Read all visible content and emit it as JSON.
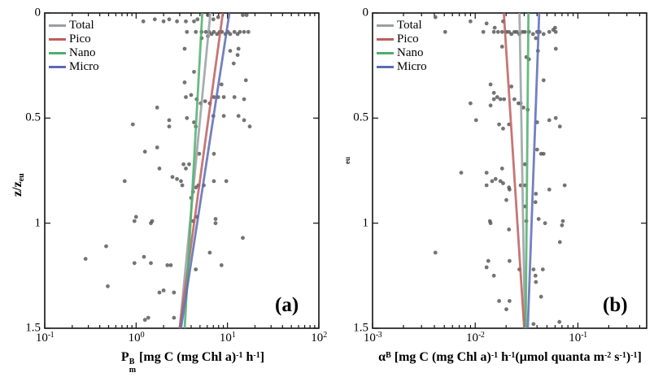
{
  "figure": {
    "background": "#ffffff",
    "dot_color": "#4d4d4d",
    "axis_color": "#111111"
  },
  "chart_data": [
    {
      "type": "scatter",
      "panel_label": "(a)",
      "xlabel_segments": [
        {
          "t": "P"
        },
        {
          "stack": {
            "sup": "B",
            "sub": "m"
          }
        },
        {
          "t": " [mg C (mg Chl a)"
        },
        {
          "sup": "-1"
        },
        {
          "t": " h"
        },
        {
          "sup": "-1"
        },
        {
          "t": "]"
        }
      ],
      "ylabel_segments": [
        {
          "t": "z/z"
        },
        {
          "sub": "eu"
        }
      ],
      "xscale": "log",
      "xlim_log10": [
        -1,
        2
      ],
      "ylim": [
        0,
        1.5
      ],
      "y_axis_reversed": true,
      "grid": false,
      "x_ticks": [
        {
          "base": "10",
          "exp": "-1"
        },
        {
          "base": "10",
          "exp": "0"
        },
        {
          "base": "10",
          "exp": "1"
        },
        {
          "base": "10",
          "exp": "2"
        }
      ],
      "y_ticks": [
        "0",
        "0.5",
        "1",
        "1.5"
      ],
      "legend_position": "top-left-inside",
      "legend": [
        {
          "label": "Total",
          "color": "#999fa1"
        },
        {
          "label": "Pico",
          "color": "#bd5e5c"
        },
        {
          "label": "Nano",
          "color": "#4fae6b"
        },
        {
          "label": "Micro",
          "color": "#5a6bb5"
        }
      ],
      "lines": [
        {
          "name": "Total",
          "color": "#999fa1",
          "x_at_z0": 6.5,
          "x_at_z1_5": 3.0
        },
        {
          "name": "Pico",
          "color": "#bd5e5c",
          "x_at_z0": 8.9,
          "x_at_z1_5": 3.0
        },
        {
          "name": "Nano",
          "color": "#4fae6b",
          "x_at_z0": 5.3,
          "x_at_z1_5": 3.4
        },
        {
          "name": "Micro",
          "color": "#5a6bb5",
          "x_at_z0": 10.5,
          "x_at_z1_5": 3.1
        }
      ],
      "scatter": [
        [
          1.2,
          0.04
        ],
        [
          1.6,
          0.03
        ],
        [
          2.0,
          0.04
        ],
        [
          2.3,
          0.03
        ],
        [
          2.8,
          0.04
        ],
        [
          3.5,
          0.04
        ],
        [
          4.3,
          0.04
        ],
        [
          4.7,
          0.03
        ],
        [
          6.1,
          0.01
        ],
        [
          7.0,
          0.03
        ],
        [
          7.9,
          0.02
        ],
        [
          14.7,
          0.01
        ],
        [
          16.2,
          0.01
        ],
        [
          3.6,
          0.09
        ],
        [
          4.5,
          0.09
        ],
        [
          5.2,
          0.09
        ],
        [
          5.8,
          0.09
        ],
        [
          6.3,
          0.09
        ],
        [
          6.7,
          0.1
        ],
        [
          7.1,
          0.09
        ],
        [
          7.7,
          0.1
        ],
        [
          8.2,
          0.09
        ],
        [
          8.7,
          0.09
        ],
        [
          9.5,
          0.1
        ],
        [
          10.1,
          0.09
        ],
        [
          10.7,
          0.1
        ],
        [
          11.9,
          0.09
        ],
        [
          12.9,
          0.1
        ],
        [
          13.7,
          0.09
        ],
        [
          15.2,
          0.09
        ],
        [
          16.9,
          0.09
        ],
        [
          5.2,
          0.12
        ],
        [
          6.1,
          0.11
        ],
        [
          3.4,
          0.17
        ],
        [
          10.7,
          0.18
        ],
        [
          13.2,
          0.17
        ],
        [
          12.9,
          0.2
        ],
        [
          11.7,
          0.24
        ],
        [
          4.3,
          0.28
        ],
        [
          3.4,
          0.33
        ],
        [
          8.6,
          0.34
        ],
        [
          15.9,
          0.32
        ],
        [
          3.5,
          0.4
        ],
        [
          4.0,
          0.39
        ],
        [
          4.6,
          0.41
        ],
        [
          5.1,
          0.43
        ],
        [
          5.7,
          0.42
        ],
        [
          6.4,
          0.43
        ],
        [
          7.1,
          0.4
        ],
        [
          7.9,
          0.4
        ],
        [
          9.1,
          0.4
        ],
        [
          11.9,
          0.4
        ],
        [
          15.2,
          0.41
        ],
        [
          1.7,
          0.45
        ],
        [
          7.0,
          0.49
        ],
        [
          0.92,
          0.53
        ],
        [
          2.3,
          0.51
        ],
        [
          2.3,
          0.54
        ],
        [
          3.6,
          0.5
        ],
        [
          4.3,
          0.52
        ],
        [
          4.5,
          0.54
        ],
        [
          9.1,
          0.49
        ],
        [
          13.2,
          0.49
        ],
        [
          15.2,
          0.51
        ],
        [
          17.5,
          0.54
        ],
        [
          1.25,
          0.66
        ],
        [
          1.7,
          0.64
        ],
        [
          4.9,
          0.67
        ],
        [
          7.1,
          0.67
        ],
        [
          3.8,
          0.72
        ],
        [
          3.3,
          0.72
        ],
        [
          3.5,
          0.74
        ],
        [
          1.8,
          0.74
        ],
        [
          2.5,
          0.78
        ],
        [
          2.8,
          0.79
        ],
        [
          3.1,
          0.8
        ],
        [
          3.2,
          0.82
        ],
        [
          0.75,
          0.8
        ],
        [
          4.2,
          0.85
        ],
        [
          4.5,
          0.83
        ],
        [
          4.8,
          0.82
        ],
        [
          5.5,
          0.82
        ],
        [
          7.1,
          0.8
        ],
        [
          9.7,
          0.8
        ],
        [
          4.0,
          0.88
        ],
        [
          4.6,
          0.97
        ],
        [
          1.0,
          0.97
        ],
        [
          1.5,
          0.99
        ],
        [
          7.4,
          0.98
        ],
        [
          0.96,
          0.99
        ],
        [
          1.45,
          1.0
        ],
        [
          4.2,
          0.99
        ],
        [
          7.4,
          1.0
        ],
        [
          14.7,
          1.07
        ],
        [
          0.47,
          1.11
        ],
        [
          0.28,
          1.17
        ],
        [
          0.96,
          1.19
        ],
        [
          1.22,
          1.16
        ],
        [
          1.45,
          1.19
        ],
        [
          2.2,
          1.2
        ],
        [
          2.4,
          1.2
        ],
        [
          6.4,
          1.14
        ],
        [
          8.6,
          1.2
        ],
        [
          4.5,
          1.22
        ],
        [
          0.49,
          1.3
        ],
        [
          1.8,
          1.33
        ],
        [
          2.0,
          1.32
        ],
        [
          2.6,
          1.33
        ],
        [
          1.36,
          1.45
        ],
        [
          2.6,
          1.45
        ],
        [
          1.25,
          1.46
        ]
      ]
    },
    {
      "type": "scatter",
      "panel_label": "(b)",
      "xlabel_segments": [
        {
          "t": "α"
        },
        {
          "sup": "B"
        },
        {
          "t": " [mg C (mg Chl a)"
        },
        {
          "sup": "-1"
        },
        {
          "t": " h"
        },
        {
          "sup": "-1"
        },
        {
          "t": "(μmol quanta m"
        },
        {
          "sup": "-2"
        },
        {
          "t": " s"
        },
        {
          "sup": "-1"
        },
        {
          "t": ")"
        },
        {
          "sup": "-1"
        },
        {
          "t": "]"
        }
      ],
      "ylabel_segments": [],
      "ylabel_fragment": "eu",
      "xscale": "log",
      "xlim_log10": [
        -3,
        -0.33
      ],
      "ylim": [
        0,
        1.5
      ],
      "y_axis_reversed": true,
      "grid": false,
      "x_ticks": [
        {
          "base": "10",
          "exp": "-3"
        },
        {
          "base": "10",
          "exp": "-2"
        },
        {
          "base": "10",
          "exp": "-1"
        }
      ],
      "y_ticks": [
        "0",
        "0.5",
        "1",
        "1.5"
      ],
      "legend_position": "top-left-inside",
      "legend": [
        {
          "label": "Total",
          "color": "#999fa1"
        },
        {
          "label": "Pico",
          "color": "#bd5e5c"
        },
        {
          "label": "Nano",
          "color": "#4fae6b"
        },
        {
          "label": "Micro",
          "color": "#5a6bb5"
        }
      ],
      "lines": [
        {
          "name": "Total",
          "color": "#999fa1",
          "x_at_z0": 0.027,
          "x_at_z1_5": 0.0305
        },
        {
          "name": "Pico",
          "color": "#bd5e5c",
          "x_at_z0": 0.019,
          "x_at_z1_5": 0.03
        },
        {
          "name": "Nano",
          "color": "#4fae6b",
          "x_at_z0": 0.033,
          "x_at_z1_5": 0.031
        },
        {
          "name": "Micro",
          "color": "#5a6bb5",
          "x_at_z0": 0.042,
          "x_at_z1_5": 0.0325
        }
      ],
      "scatter": [
        [
          0.0041,
          0.02
        ],
        [
          0.0051,
          0.09
        ],
        [
          0.009,
          0.04
        ],
        [
          0.0129,
          0.05
        ],
        [
          0.012,
          0.09
        ],
        [
          0.0155,
          0.07
        ],
        [
          0.0187,
          0.04
        ],
        [
          0.0152,
          0.09
        ],
        [
          0.0167,
          0.09
        ],
        [
          0.0183,
          0.09
        ],
        [
          0.0201,
          0.09
        ],
        [
          0.0213,
          0.09
        ],
        [
          0.0225,
          0.1
        ],
        [
          0.0241,
          0.09
        ],
        [
          0.0254,
          0.09
        ],
        [
          0.0269,
          0.1
        ],
        [
          0.0289,
          0.09
        ],
        [
          0.0305,
          0.09
        ],
        [
          0.0334,
          0.09
        ],
        [
          0.0366,
          0.1
        ],
        [
          0.0401,
          0.09
        ],
        [
          0.0424,
          0.09
        ],
        [
          0.0464,
          0.1
        ],
        [
          0.0527,
          0.09
        ],
        [
          0.0576,
          0.08
        ],
        [
          0.0609,
          0.09
        ],
        [
          0.039,
          0.12
        ],
        [
          0.0183,
          0.16
        ],
        [
          0.06,
          0.07
        ],
        [
          0.0315,
          0.21
        ],
        [
          0.0334,
          0.22
        ],
        [
          0.0408,
          0.18
        ],
        [
          0.061,
          0.17
        ],
        [
          0.0141,
          0.34
        ],
        [
          0.0152,
          0.38
        ],
        [
          0.0152,
          0.41
        ],
        [
          0.0164,
          0.4
        ],
        [
          0.0176,
          0.41
        ],
        [
          0.0191,
          0.41
        ],
        [
          0.0225,
          0.35
        ],
        [
          0.0241,
          0.41
        ],
        [
          0.0264,
          0.43
        ],
        [
          0.0277,
          0.43
        ],
        [
          0.0295,
          0.45
        ],
        [
          0.0325,
          0.46
        ],
        [
          0.0464,
          0.32
        ],
        [
          0.009,
          0.43
        ],
        [
          0.0141,
          0.44
        ],
        [
          0.0102,
          0.51
        ],
        [
          0.0171,
          0.53
        ],
        [
          0.0187,
          0.55
        ],
        [
          0.0213,
          0.53
        ],
        [
          0.0401,
          0.52
        ],
        [
          0.0527,
          0.51
        ],
        [
          0.0609,
          0.5
        ],
        [
          0.0668,
          0.54
        ],
        [
          0.0401,
          0.65
        ],
        [
          0.0438,
          0.67
        ],
        [
          0.0464,
          0.67
        ],
        [
          0.0305,
          0.72
        ],
        [
          0.0073,
          0.76
        ],
        [
          0.0129,
          0.76
        ],
        [
          0.0183,
          0.74
        ],
        [
          0.0129,
          0.82
        ],
        [
          0.0146,
          0.8
        ],
        [
          0.0158,
          0.79
        ],
        [
          0.0176,
          0.8
        ],
        [
          0.0187,
          0.81
        ],
        [
          0.0213,
          0.83
        ],
        [
          0.0216,
          0.84
        ],
        [
          0.0277,
          0.82
        ],
        [
          0.0305,
          0.82
        ],
        [
          0.039,
          0.86
        ],
        [
          0.0527,
          0.84
        ],
        [
          0.0744,
          0.82
        ],
        [
          0.0201,
          0.89
        ],
        [
          0.0305,
          0.92
        ],
        [
          0.0386,
          0.9
        ],
        [
          0.0139,
          0.99
        ],
        [
          0.0315,
          0.99
        ],
        [
          0.0415,
          0.98
        ],
        [
          0.0714,
          0.99
        ],
        [
          0.0141,
          1.0
        ],
        [
          0.0213,
          1.03
        ],
        [
          0.0479,
          1.0
        ],
        [
          0.07,
          1.01
        ],
        [
          0.0668,
          1.09
        ],
        [
          0.0041,
          1.14
        ],
        [
          0.0134,
          1.18
        ],
        [
          0.0129,
          1.21
        ],
        [
          0.0152,
          1.25
        ],
        [
          0.0216,
          1.18
        ],
        [
          0.0269,
          1.22
        ],
        [
          0.037,
          1.22
        ],
        [
          0.0386,
          1.25
        ],
        [
          0.039,
          1.28
        ],
        [
          0.0455,
          1.22
        ],
        [
          0.0438,
          1.35
        ],
        [
          0.0171,
          1.37
        ],
        [
          0.0216,
          1.37
        ],
        [
          0.0201,
          1.41
        ],
        [
          0.037,
          1.48
        ],
        [
          0.066,
          1.47
        ]
      ]
    }
  ]
}
